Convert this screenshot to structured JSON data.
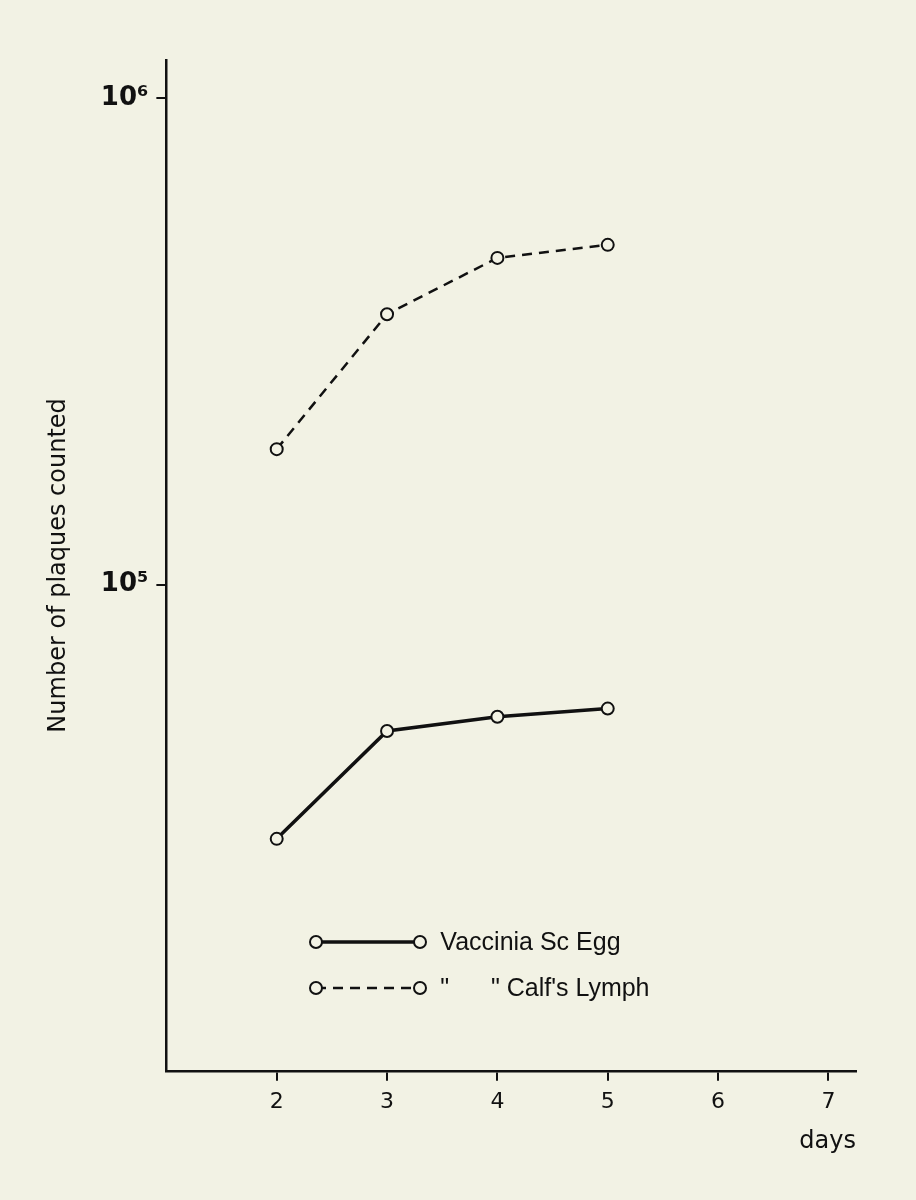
{
  "chart_data": {
    "type": "line",
    "x_label": "days",
    "y_label": "Number of plaques counted",
    "log": "y",
    "grid": false,
    "legend": "lower left",
    "xlim": [
      1,
      7.25
    ],
    "xticks": [
      2,
      3,
      4,
      5,
      6,
      7
    ],
    "ylim": [
      10000,
      1200000
    ],
    "yticks": [
      {
        "value": 100000,
        "label": "10⁵"
      },
      {
        "value": 1000000,
        "label": "10⁶"
      }
    ],
    "series": [
      {
        "name": "Vaccinia Sc Egg",
        "color": "#111111",
        "line_style": "solid",
        "marker": "open circle",
        "x": [
          2,
          3,
          4,
          5
        ],
        "values": [
          30000,
          50000,
          53500,
          55600
        ]
      },
      {
        "name": "\"      \" Calf's Lymph",
        "color": "#111111",
        "line_style": "dashed",
        "marker": "open circle",
        "x": [
          2,
          3,
          4,
          5
        ],
        "values": [
          190000,
          360000,
          470000,
          500000
        ]
      }
    ]
  }
}
